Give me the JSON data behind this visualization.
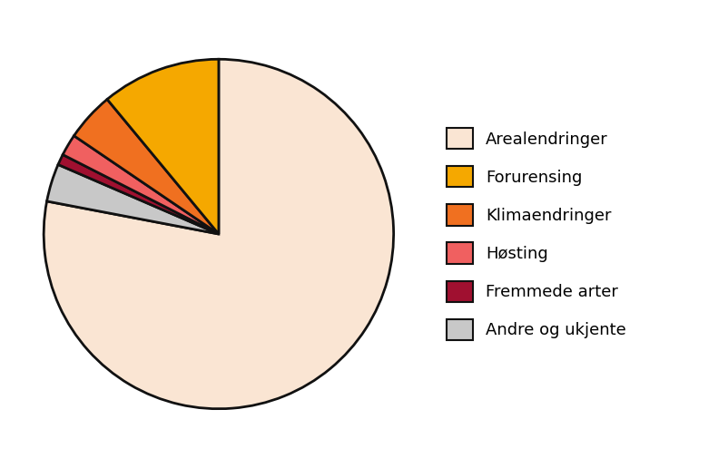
{
  "labels": [
    "Arealendringer",
    "Forurensing",
    "Klimaendringer",
    "Høsting",
    "Fremmede arter",
    "Andre og ukjente"
  ],
  "values": [
    78,
    11,
    4.5,
    2,
    1,
    3.5
  ],
  "colors": [
    "#FAE5D3",
    "#F5A800",
    "#F07020",
    "#F06060",
    "#A01030",
    "#C8C8C8"
  ],
  "pie_order": [
    0,
    5,
    4,
    3,
    2,
    1
  ],
  "edgecolor": "#111111",
  "edgewidth": 2.0,
  "background_color": "#ffffff",
  "legend_fontsize": 13,
  "figsize": [
    8.03,
    5.16
  ],
  "dpi": 100
}
